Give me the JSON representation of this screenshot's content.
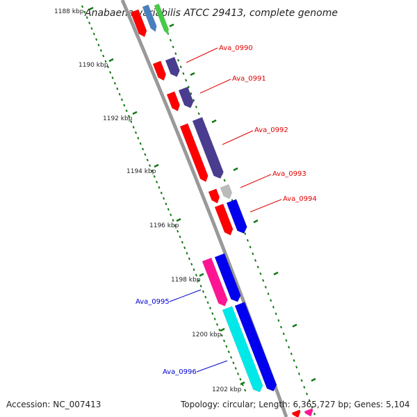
{
  "title": "Anabaena variabilis ATCC 29413, complete genome",
  "footer": {
    "accession": "Accession: NC_007413",
    "summary": "Topology: circular; Length: 6,365,727 bp; Genes: 5,104"
  },
  "ticks": [
    {
      "label": "1188 kbp",
      "kbp": 1188
    },
    {
      "label": "1190 kbp",
      "kbp": 1190
    },
    {
      "label": "1192 kbp",
      "kbp": 1192
    },
    {
      "label": "1194 kbp",
      "kbp": 1194
    },
    {
      "label": "1196 kbp",
      "kbp": 1196
    },
    {
      "label": "1198 kbp",
      "kbp": 1198
    },
    {
      "label": "1200 kbp",
      "kbp": 1200
    },
    {
      "label": "1202 kbp",
      "kbp": 1202
    }
  ],
  "gene_labels": [
    {
      "label": "Ava_0990",
      "color": "#e00000"
    },
    {
      "label": "Ava_0991",
      "color": "#e00000"
    },
    {
      "label": "Ava_0992",
      "color": "#e00000"
    },
    {
      "label": "Ava_0993",
      "color": "#e00000"
    },
    {
      "label": "Ava_0994",
      "color": "#e00000"
    },
    {
      "label": "Ava_0995",
      "color": "#0000cc"
    },
    {
      "label": "Ava_0996",
      "color": "#0000cc"
    }
  ],
  "colors": {
    "backbone": "#999999",
    "cds_red": "#ff0000",
    "cds_purple": "#4a3d8f",
    "cds_blue": "#0000ee",
    "cds_pink": "#ff1493",
    "cds_cyan": "#00e8e8",
    "cds_gray": "#bbbbbb",
    "cds_steel": "#4a7fc0",
    "cds_green": "#44cc44",
    "tick_green": "#117711"
  }
}
